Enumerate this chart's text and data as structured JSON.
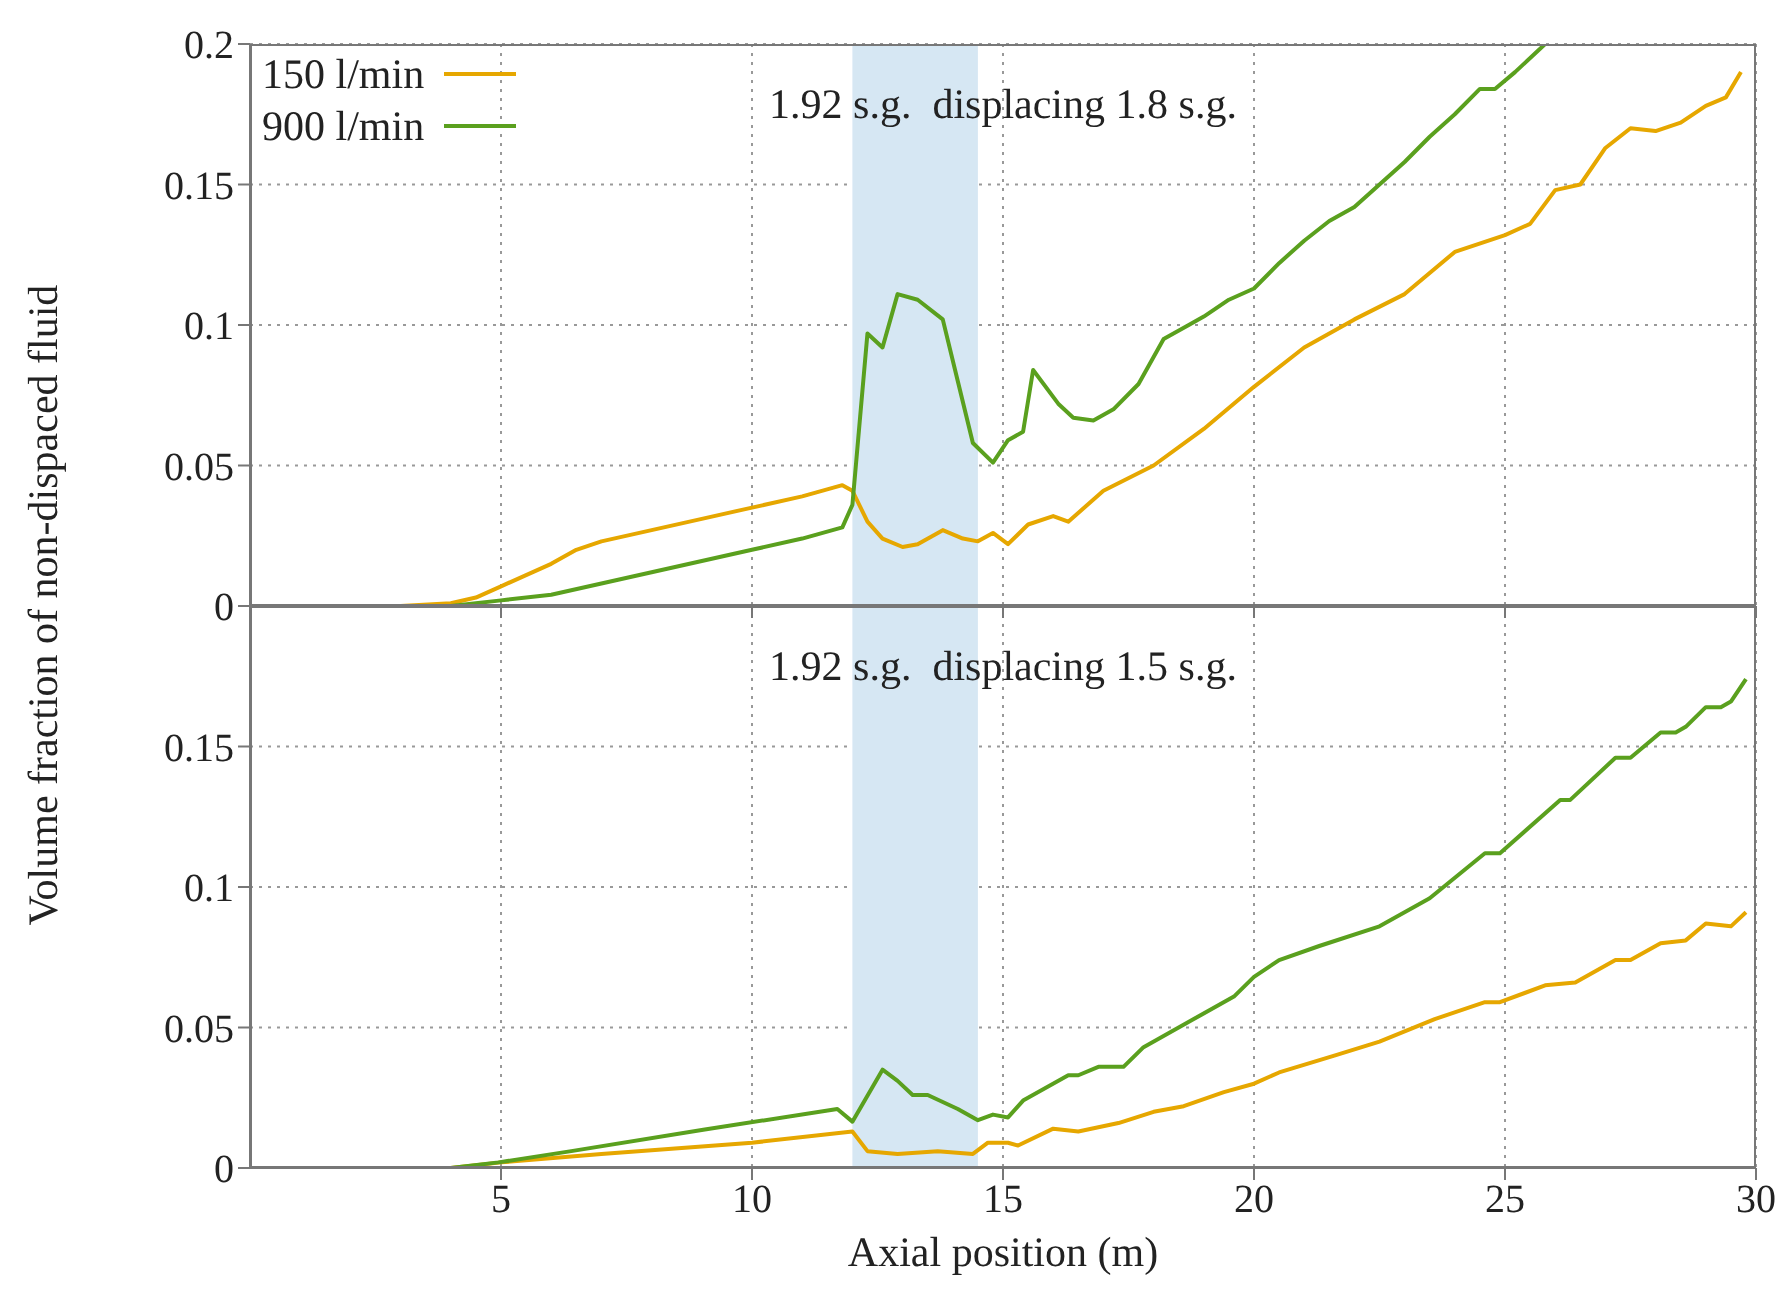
{
  "chart_data": [
    {
      "type": "line",
      "ylabel": "Volume fraction of non-dispaced fluid",
      "annotations": [
        "1.92 s.g.  displacing 1.8 s.g."
      ],
      "xlim": [
        0,
        30
      ],
      "xticks": [
        5,
        10,
        15,
        20,
        25,
        30
      ],
      "ylim": [
        0,
        0.2
      ],
      "yticks": [
        0,
        0.05,
        0.1,
        0.15,
        0.2
      ],
      "tick_labels": "y",
      "grid": true,
      "legend": "top left",
      "line_style": "solid",
      "marker": "none",
      "bands": [
        {
          "axis": "x",
          "from": 12,
          "to": 14.5,
          "color": "#d6e7f3"
        }
      ],
      "series": [
        {
          "name": "150 l/min",
          "color": "#e6a700",
          "x": [
            1,
            3,
            4,
            4.5,
            5,
            5.5,
            6,
            6.5,
            7,
            8,
            9,
            10,
            11,
            11.8,
            12,
            12.3,
            12.6,
            13,
            13.3,
            13.8,
            14.2,
            14.5,
            14.8,
            15.1,
            15.5,
            16,
            16.3,
            17,
            18,
            19,
            20,
            21,
            22,
            23,
            24,
            25,
            25.5,
            26,
            26.5,
            27,
            27.5,
            28,
            28.5,
            29,
            29.4,
            29.7
          ],
          "values": [
            0,
            0,
            0.001,
            0.003,
            0.007,
            0.011,
            0.015,
            0.02,
            0.023,
            0.027,
            0.031,
            0.035,
            0.039,
            0.043,
            0.041,
            0.03,
            0.024,
            0.021,
            0.022,
            0.027,
            0.024,
            0.023,
            0.026,
            0.022,
            0.029,
            0.032,
            0.03,
            0.041,
            0.05,
            0.063,
            0.078,
            0.092,
            0.102,
            0.111,
            0.126,
            0.132,
            0.136,
            0.148,
            0.15,
            0.163,
            0.17,
            0.169,
            0.172,
            0.178,
            0.181,
            0.19
          ]
        },
        {
          "name": "900 l/min",
          "color": "#5aa01e",
          "x": [
            1,
            4,
            5,
            6,
            7,
            8,
            9,
            10,
            11,
            11.8,
            12,
            12.3,
            12.6,
            12.9,
            13.3,
            13.8,
            14.1,
            14.4,
            14.8,
            15.1,
            15.4,
            15.6,
            16.1,
            16.4,
            16.8,
            17.2,
            17.7,
            18.2,
            18.7,
            19,
            19.5,
            20,
            20.5,
            21,
            21.5,
            22,
            22.5,
            23,
            23.5,
            24,
            24.5,
            24.8,
            25.2,
            25.8
          ],
          "values": [
            0,
            0,
            0.002,
            0.004,
            0.008,
            0.012,
            0.016,
            0.02,
            0.024,
            0.028,
            0.036,
            0.097,
            0.092,
            0.111,
            0.109,
            0.102,
            0.08,
            0.058,
            0.051,
            0.059,
            0.062,
            0.084,
            0.072,
            0.067,
            0.066,
            0.07,
            0.079,
            0.095,
            0.1,
            0.103,
            0.109,
            0.113,
            0.122,
            0.13,
            0.137,
            0.142,
            0.15,
            0.158,
            0.167,
            0.175,
            0.184,
            0.184,
            0.19,
            0.2
          ]
        }
      ]
    },
    {
      "type": "line",
      "xlabel": "Axial position (m)",
      "annotations": [
        "1.92 s.g.  displacing 1.5 s.g."
      ],
      "xlim": [
        0,
        30
      ],
      "xticks": [
        5,
        10,
        15,
        20,
        25,
        30
      ],
      "ylim": [
        0,
        0.2
      ],
      "yticks": [
        0,
        0.05,
        0.1,
        0.15
      ],
      "grid": true,
      "line_style": "solid",
      "marker": "none",
      "bands": [
        {
          "axis": "x",
          "from": 12,
          "to": 14.5,
          "color": "#d6e7f3"
        }
      ],
      "series": [
        {
          "color": "#e6a700",
          "x": [
            1,
            4,
            5,
            7,
            10,
            12,
            12.3,
            12.9,
            13.7,
            14.4,
            14.7,
            15.1,
            15.3,
            16,
            16.5,
            17.3,
            18,
            18.6,
            19.4,
            20,
            20.5,
            21.6,
            22.5,
            23.6,
            24.6,
            24.9,
            25.8,
            26.4,
            27.2,
            27.5,
            28.1,
            28.6,
            29,
            29.5,
            29.8
          ],
          "values": [
            0,
            0,
            0.002,
            0.005,
            0.009,
            0.013,
            0.006,
            0.005,
            0.006,
            0.005,
            0.009,
            0.009,
            0.008,
            0.014,
            0.013,
            0.016,
            0.02,
            0.022,
            0.027,
            0.03,
            0.034,
            0.04,
            0.045,
            0.053,
            0.059,
            0.059,
            0.065,
            0.066,
            0.074,
            0.074,
            0.08,
            0.081,
            0.087,
            0.086,
            0.091
          ]
        },
        {
          "color": "#5aa01e",
          "x": [
            1,
            4,
            4.95,
            6.4,
            9.06,
            11.7,
            12,
            12.6,
            12.9,
            13.2,
            13.5,
            14.1,
            14.5,
            14.8,
            15.1,
            15.4,
            16.3,
            16.5,
            16.9,
            17.4,
            17.8,
            18.8,
            19.6,
            20,
            20.5,
            21.3,
            22.5,
            23.5,
            24.6,
            24.9,
            26.1,
            26.3,
            27.2,
            27.5,
            28.1,
            28.4,
            28.6,
            29,
            29.3,
            29.5,
            29.8
          ],
          "values": [
            0,
            0,
            0.002,
            0.006,
            0.0137,
            0.021,
            0.0165,
            0.035,
            0.031,
            0.026,
            0.026,
            0.021,
            0.017,
            0.019,
            0.018,
            0.024,
            0.033,
            0.033,
            0.036,
            0.036,
            0.043,
            0.053,
            0.061,
            0.068,
            0.074,
            0.079,
            0.086,
            0.096,
            0.112,
            0.112,
            0.131,
            0.131,
            0.146,
            0.146,
            0.155,
            0.155,
            0.157,
            0.164,
            0.164,
            0.166,
            0.174
          ]
        }
      ]
    }
  ]
}
